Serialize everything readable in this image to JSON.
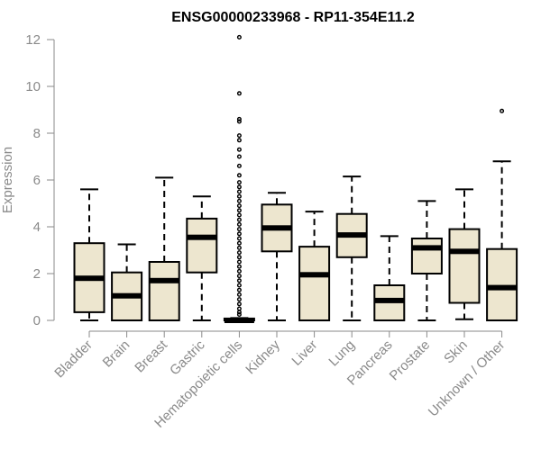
{
  "chart_data": {
    "type": "box",
    "title": "ENSG00000233968 - RP11-354E11.2",
    "xlabel": "",
    "ylabel": "Expression",
    "ylim": [
      0,
      12
    ],
    "yticks": [
      0,
      2,
      4,
      6,
      8,
      10,
      12
    ],
    "grid": false,
    "legend": "none",
    "colors": {
      "box_fill": "#ede6cf",
      "box_stroke": "#000000",
      "axis": "#8a8a8a"
    },
    "categories": [
      "Bladder",
      "Brain",
      "Breast",
      "Gastric",
      "Hematopoietic cells",
      "Kidney",
      "Liver",
      "Lung",
      "Pancreas",
      "Prostate",
      "Skin",
      "Unknown / Other"
    ],
    "boxes": [
      {
        "category": "Bladder",
        "whisker_low": 0,
        "q1": 0.35,
        "median": 1.8,
        "q3": 3.3,
        "whisker_high": 5.6,
        "outliers": []
      },
      {
        "category": "Brain",
        "whisker_low": 0,
        "q1": 0,
        "median": 1.05,
        "q3": 2.05,
        "whisker_high": 3.25,
        "outliers": []
      },
      {
        "category": "Breast",
        "whisker_low": 0,
        "q1": 0,
        "median": 1.7,
        "q3": 2.5,
        "whisker_high": 6.1,
        "outliers": []
      },
      {
        "category": "Gastric",
        "whisker_low": 0,
        "q1": 2.05,
        "median": 3.55,
        "q3": 4.35,
        "whisker_high": 5.3,
        "outliers": []
      },
      {
        "category": "Hematopoietic cells",
        "whisker_low": 0,
        "q1": 0,
        "median": 0,
        "q3": 0.08,
        "whisker_high": 0.1,
        "outliers": [
          12.1,
          9.7,
          8.6,
          8.5,
          7.9,
          7.7,
          7.3,
          7.0,
          6.6,
          6.2,
          5.9,
          5.7,
          5.5,
          5.3,
          5.1,
          4.9,
          4.7,
          4.5,
          4.3,
          4.1,
          3.9,
          3.7,
          3.5,
          3.3,
          3.1,
          2.9,
          2.7,
          2.5,
          2.3,
          2.1,
          1.9,
          1.7,
          1.5,
          1.3,
          1.1,
          0.9,
          0.7,
          0.5,
          0.35,
          0.25
        ]
      },
      {
        "category": "Kidney",
        "whisker_low": 0,
        "q1": 2.95,
        "median": 3.95,
        "q3": 4.95,
        "whisker_high": 5.45,
        "outliers": []
      },
      {
        "category": "Liver",
        "whisker_low": 0,
        "q1": 0,
        "median": 1.95,
        "q3": 3.15,
        "whisker_high": 4.65,
        "outliers": []
      },
      {
        "category": "Lung",
        "whisker_low": 0,
        "q1": 2.7,
        "median": 3.65,
        "q3": 4.55,
        "whisker_high": 6.15,
        "outliers": []
      },
      {
        "category": "Pancreas",
        "whisker_low": 0,
        "q1": 0,
        "median": 0.85,
        "q3": 1.5,
        "whisker_high": 3.6,
        "outliers": []
      },
      {
        "category": "Prostate",
        "whisker_low": 0,
        "q1": 2.0,
        "median": 3.1,
        "q3": 3.5,
        "whisker_high": 5.1,
        "outliers": []
      },
      {
        "category": "Skin",
        "whisker_low": 0.05,
        "q1": 0.75,
        "median": 2.95,
        "q3": 3.9,
        "whisker_high": 5.6,
        "outliers": []
      },
      {
        "category": "Unknown / Other",
        "whisker_low": 0,
        "q1": 0,
        "median": 1.4,
        "q3": 3.05,
        "whisker_high": 6.8,
        "outliers": [
          8.95
        ]
      }
    ]
  }
}
